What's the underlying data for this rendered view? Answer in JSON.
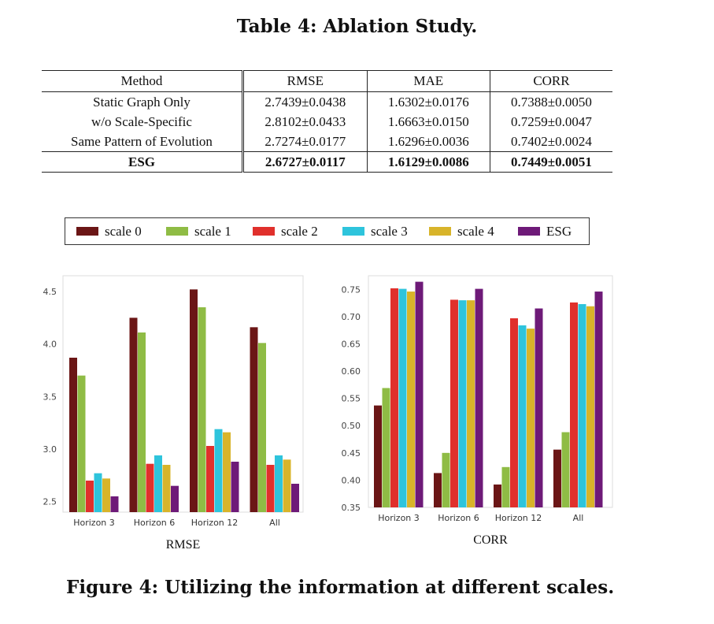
{
  "table": {
    "title": "Table 4: Ablation Study.",
    "headers": [
      "Method",
      "RMSE",
      "MAE",
      "CORR"
    ],
    "rows": [
      {
        "method": "Static Graph Only",
        "rmse": "2.7439±0.0438",
        "mae": "1.6302±0.0176",
        "corr": "0.7388±0.0050"
      },
      {
        "method": "w/o Scale-Specific",
        "rmse": "2.8102±0.0433",
        "mae": "1.6663±0.0150",
        "corr": "0.7259±0.0047"
      },
      {
        "method": "Same Pattern of Evolution",
        "rmse": "2.7274±0.0177",
        "mae": "1.6296±0.0036",
        "corr": "0.7402±0.0024"
      },
      {
        "method": "ESG",
        "rmse": "2.6727±0.0117",
        "mae": "1.6129±0.0086",
        "corr": "0.7449±0.0051"
      }
    ]
  },
  "legend": [
    {
      "label": "scale 0",
      "color": "#6b1616"
    },
    {
      "label": "scale 1",
      "color": "#8fbc45"
    },
    {
      "label": "scale 2",
      "color": "#e0302c"
    },
    {
      "label": "scale 3",
      "color": "#2ec4dc"
    },
    {
      "label": "scale 4",
      "color": "#d8b42a"
    },
    {
      "label": "ESG",
      "color": "#6e1a78"
    }
  ],
  "chart_data": [
    {
      "type": "bar",
      "title": "RMSE",
      "categories": [
        "Horizon 3",
        "Horizon 6",
        "Horizon 12",
        "All"
      ],
      "ylim": [
        2.4,
        4.65
      ],
      "yticks": [
        2.5,
        3.0,
        3.5,
        4.0,
        4.5
      ],
      "ytick_labels": [
        "2.5",
        "3.0",
        "3.5",
        "4.0",
        "4.5"
      ],
      "series": [
        {
          "name": "scale 0",
          "values": [
            3.87,
            4.25,
            4.52,
            4.16
          ]
        },
        {
          "name": "scale 1",
          "values": [
            3.7,
            4.11,
            4.35,
            4.01
          ]
        },
        {
          "name": "scale 2",
          "values": [
            2.7,
            2.86,
            3.03,
            2.85
          ]
        },
        {
          "name": "scale 3",
          "values": [
            2.77,
            2.94,
            3.19,
            2.94
          ]
        },
        {
          "name": "scale 4",
          "values": [
            2.72,
            2.85,
            3.16,
            2.9
          ]
        },
        {
          "name": "ESG",
          "values": [
            2.55,
            2.65,
            2.88,
            2.67
          ]
        }
      ]
    },
    {
      "type": "bar",
      "title": "CORR",
      "categories": [
        "Horizon 3",
        "Horizon 6",
        "Horizon 12",
        "All"
      ],
      "ylim": [
        0.35,
        0.775
      ],
      "yticks": [
        0.35,
        0.4,
        0.45,
        0.5,
        0.55,
        0.6,
        0.65,
        0.7,
        0.75
      ],
      "ytick_labels": [
        "0.35",
        "0.40",
        "0.45",
        "0.50",
        "0.55",
        "0.60",
        "0.65",
        "0.70",
        "0.75"
      ],
      "series": [
        {
          "name": "scale 0",
          "values": [
            0.537,
            0.413,
            0.392,
            0.456
          ]
        },
        {
          "name": "scale 1",
          "values": [
            0.569,
            0.45,
            0.424,
            0.488
          ]
        },
        {
          "name": "scale 2",
          "values": [
            0.752,
            0.731,
            0.697,
            0.726
          ]
        },
        {
          "name": "scale 3",
          "values": [
            0.751,
            0.73,
            0.684,
            0.723
          ]
        },
        {
          "name": "scale 4",
          "values": [
            0.746,
            0.73,
            0.678,
            0.719
          ]
        },
        {
          "name": "ESG",
          "values": [
            0.764,
            0.751,
            0.715,
            0.746
          ]
        }
      ]
    }
  ],
  "figure": {
    "caption": "Figure 4: Utilizing the information at different scales."
  }
}
